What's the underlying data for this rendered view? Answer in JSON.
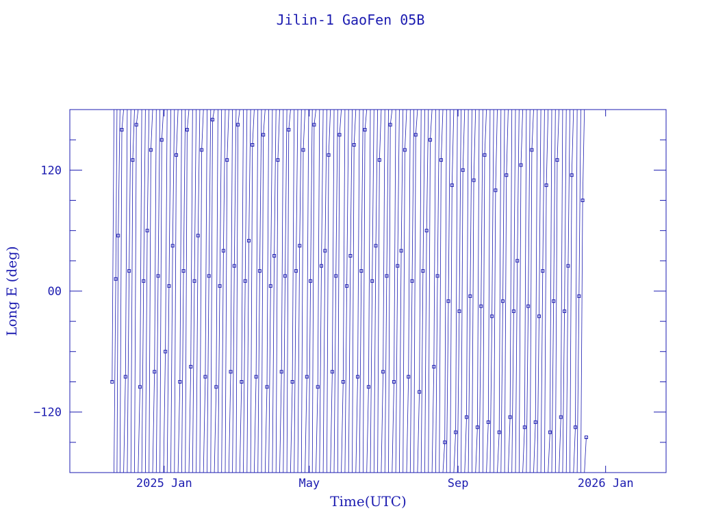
{
  "chart_data": {
    "type": "line",
    "title": "Jilin-1 GaoFen 05B",
    "xlabel": "Time(UTC)",
    "ylabel": "Long E (deg)",
    "xticks": [
      {
        "label": "2025 Jan",
        "date": "2025-01-01"
      },
      {
        "label": "May",
        "date": "2025-05-01"
      },
      {
        "label": "Sep",
        "date": "2025-09-01"
      },
      {
        "label": "2026 Jan",
        "date": "2026-01-01"
      }
    ],
    "yticks": [
      {
        "label": "120",
        "value": 120
      },
      {
        "label": "00",
        "value": 0
      },
      {
        "label": "−120",
        "value": -120
      }
    ],
    "xlim": [
      "2024-10-15",
      "2026-02-20"
    ],
    "ylim": [
      -180,
      180
    ],
    "grid": false,
    "series": [
      {
        "values": [
          [
            "2024-11-19",
            -90
          ],
          [
            "2024-11-22",
            12
          ],
          [
            "2024-11-24",
            55
          ],
          [
            "2024-11-27",
            160
          ],
          [
            "2024-11-30",
            -85
          ],
          [
            "2024-12-03",
            20
          ],
          [
            "2024-12-06",
            130
          ],
          [
            "2024-12-09",
            165
          ],
          [
            "2024-12-12",
            -95
          ],
          [
            "2024-12-15",
            10
          ],
          [
            "2024-12-18",
            60
          ],
          [
            "2024-12-21",
            140
          ],
          [
            "2024-12-24",
            -80
          ],
          [
            "2024-12-27",
            15
          ],
          [
            "2024-12-30",
            150
          ],
          [
            "2025-01-02",
            -60
          ],
          [
            "2025-01-05",
            5
          ],
          [
            "2025-01-08",
            45
          ],
          [
            "2025-01-11",
            135
          ],
          [
            "2025-01-14",
            -90
          ],
          [
            "2025-01-17",
            20
          ],
          [
            "2025-01-20",
            160
          ],
          [
            "2025-01-23",
            -75
          ],
          [
            "2025-01-26",
            10
          ],
          [
            "2025-01-29",
            55
          ],
          [
            "2025-02-01",
            140
          ],
          [
            "2025-02-04",
            -85
          ],
          [
            "2025-02-07",
            15
          ],
          [
            "2025-02-10",
            170
          ],
          [
            "2025-02-13",
            -95
          ],
          [
            "2025-02-16",
            5
          ],
          [
            "2025-02-19",
            40
          ],
          [
            "2025-02-22",
            130
          ],
          [
            "2025-02-25",
            -80
          ],
          [
            "2025-02-28",
            25
          ],
          [
            "2025-03-03",
            165
          ],
          [
            "2025-03-06",
            -90
          ],
          [
            "2025-03-09",
            10
          ],
          [
            "2025-03-12",
            50
          ],
          [
            "2025-03-15",
            145
          ],
          [
            "2025-03-18",
            -85
          ],
          [
            "2025-03-21",
            20
          ],
          [
            "2025-03-24",
            155
          ],
          [
            "2025-03-27",
            -95
          ],
          [
            "2025-03-30",
            5
          ],
          [
            "2025-04-02",
            35
          ],
          [
            "2025-04-05",
            130
          ],
          [
            "2025-04-08",
            -80
          ],
          [
            "2025-04-11",
            15
          ],
          [
            "2025-04-14",
            160
          ],
          [
            "2025-04-17",
            -90
          ],
          [
            "2025-04-20",
            20
          ],
          [
            "2025-04-23",
            45
          ],
          [
            "2025-04-26",
            140
          ],
          [
            "2025-04-29",
            -85
          ],
          [
            "2025-05-02",
            10
          ],
          [
            "2025-05-05",
            165
          ],
          [
            "2025-05-08",
            -95
          ],
          [
            "2025-05-11",
            25
          ],
          [
            "2025-05-14",
            40
          ],
          [
            "2025-05-17",
            135
          ],
          [
            "2025-05-20",
            -80
          ],
          [
            "2025-05-23",
            15
          ],
          [
            "2025-05-26",
            155
          ],
          [
            "2025-05-29",
            -90
          ],
          [
            "2025-06-01",
            5
          ],
          [
            "2025-06-04",
            35
          ],
          [
            "2025-06-07",
            145
          ],
          [
            "2025-06-10",
            -85
          ],
          [
            "2025-06-13",
            20
          ],
          [
            "2025-06-16",
            160
          ],
          [
            "2025-06-19",
            -95
          ],
          [
            "2025-06-22",
            10
          ],
          [
            "2025-06-25",
            45
          ],
          [
            "2025-06-28",
            130
          ],
          [
            "2025-07-01",
            -80
          ],
          [
            "2025-07-04",
            15
          ],
          [
            "2025-07-07",
            165
          ],
          [
            "2025-07-10",
            -90
          ],
          [
            "2025-07-13",
            25
          ],
          [
            "2025-07-16",
            40
          ],
          [
            "2025-07-19",
            140
          ],
          [
            "2025-07-22",
            -85
          ],
          [
            "2025-07-25",
            10
          ],
          [
            "2025-07-28",
            155
          ],
          [
            "2025-07-31",
            -100
          ],
          [
            "2025-08-03",
            20
          ],
          [
            "2025-08-06",
            60
          ],
          [
            "2025-08-09",
            150
          ],
          [
            "2025-08-12",
            -75
          ],
          [
            "2025-08-15",
            15
          ],
          [
            "2025-08-18",
            130
          ],
          [
            "2025-08-21",
            -150
          ],
          [
            "2025-08-24",
            -10
          ],
          [
            "2025-08-27",
            105
          ],
          [
            "2025-08-30",
            -140
          ],
          [
            "2025-09-02",
            -20
          ],
          [
            "2025-09-05",
            120
          ],
          [
            "2025-09-08",
            -125
          ],
          [
            "2025-09-11",
            -5
          ],
          [
            "2025-09-14",
            110
          ],
          [
            "2025-09-17",
            -135
          ],
          [
            "2025-09-20",
            -15
          ],
          [
            "2025-09-23",
            135
          ],
          [
            "2025-09-26",
            -130
          ],
          [
            "2025-09-29",
            -25
          ],
          [
            "2025-10-02",
            100
          ],
          [
            "2025-10-05",
            -140
          ],
          [
            "2025-10-08",
            -10
          ],
          [
            "2025-10-11",
            115
          ],
          [
            "2025-10-14",
            -125
          ],
          [
            "2025-10-17",
            -20
          ],
          [
            "2025-10-20",
            30
          ],
          [
            "2025-10-23",
            125
          ],
          [
            "2025-10-26",
            -135
          ],
          [
            "2025-10-29",
            -15
          ],
          [
            "2025-11-01",
            140
          ],
          [
            "2025-11-04",
            -130
          ],
          [
            "2025-11-07",
            -25
          ],
          [
            "2025-11-10",
            20
          ],
          [
            "2025-11-13",
            105
          ],
          [
            "2025-11-16",
            -140
          ],
          [
            "2025-11-19",
            -10
          ],
          [
            "2025-11-22",
            130
          ],
          [
            "2025-11-25",
            -125
          ],
          [
            "2025-11-28",
            -20
          ],
          [
            "2025-12-01",
            25
          ],
          [
            "2025-12-04",
            115
          ],
          [
            "2025-12-07",
            -135
          ],
          [
            "2025-12-10",
            -5
          ],
          [
            "2025-12-13",
            90
          ],
          [
            "2025-12-16",
            -145
          ]
        ]
      }
    ]
  }
}
